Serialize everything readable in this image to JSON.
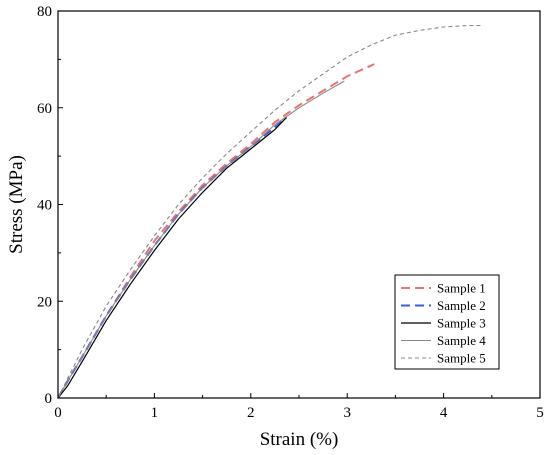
{
  "chart_data": {
    "type": "line",
    "title": "",
    "xlabel": "Strain (%)",
    "ylabel": "Stress (MPa)",
    "xlim": [
      0,
      5
    ],
    "ylim": [
      0,
      80
    ],
    "xticks": [
      0,
      1,
      2,
      3,
      4,
      5
    ],
    "yticks": [
      0,
      20,
      40,
      60,
      80
    ],
    "grid": false,
    "legend_position": "bottom-right",
    "series": [
      {
        "name": "Sample 1",
        "color": "#f07070",
        "dash": "dashed",
        "x": [
          0,
          0.1,
          0.25,
          0.5,
          0.75,
          1.0,
          1.25,
          1.5,
          1.75,
          2.0,
          2.25,
          2.5,
          2.75,
          3.0,
          3.28
        ],
        "y": [
          0,
          3.5,
          8.5,
          17,
          25,
          32.5,
          38.5,
          44,
          48.5,
          52.5,
          57,
          60.5,
          63.5,
          66.5,
          69
        ]
      },
      {
        "name": "Sample 2",
        "color": "#3b5bdb",
        "dash": "dashed",
        "x": [
          0,
          0.1,
          0.25,
          0.5,
          0.75,
          1.0,
          1.25,
          1.5,
          1.75,
          2.0,
          2.25,
          2.37
        ],
        "y": [
          0,
          3.5,
          8.5,
          17,
          24.5,
          31.5,
          38,
          43.5,
          48,
          52,
          56,
          58
        ]
      },
      {
        "name": "Sample 3",
        "color": "#000000",
        "dash": "solid",
        "x": [
          0,
          0.1,
          0.25,
          0.5,
          0.75,
          1.0,
          1.25,
          1.5,
          1.75,
          2.0,
          2.25,
          2.37
        ],
        "y": [
          0,
          2.5,
          7.5,
          16,
          23.5,
          30.5,
          37,
          42.5,
          47.5,
          51.5,
          55.5,
          58
        ]
      },
      {
        "name": "Sample 4",
        "color": "#888888",
        "dash": "solid",
        "x": [
          0,
          0.1,
          0.25,
          0.5,
          0.75,
          1.0,
          1.25,
          1.5,
          1.75,
          2.0,
          2.25,
          2.5,
          2.75,
          2.97
        ],
        "y": [
          0,
          3.5,
          8.5,
          17,
          24.5,
          31.5,
          38,
          43.5,
          48,
          52,
          56.5,
          60,
          63,
          65.5
        ]
      },
      {
        "name": "Sample 5",
        "color": "#888888",
        "dash": "dotted",
        "x": [
          0,
          0.1,
          0.25,
          0.5,
          0.75,
          1.0,
          1.25,
          1.5,
          1.75,
          2.0,
          2.25,
          2.5,
          2.75,
          3.0,
          3.25,
          3.5,
          3.75,
          4.0,
          4.25,
          4.4
        ],
        "y": [
          0,
          4,
          10,
          19,
          26.5,
          33.5,
          40,
          45.5,
          50.5,
          55,
          59.5,
          63.5,
          67,
          70.5,
          73,
          75,
          76,
          76.7,
          77,
          77
        ]
      }
    ]
  }
}
